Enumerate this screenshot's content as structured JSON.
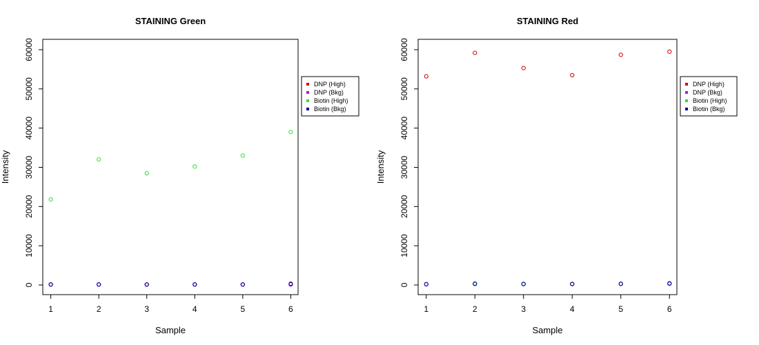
{
  "chart_data": [
    {
      "type": "scatter",
      "title": "STAINING Green",
      "xlabel": "Sample",
      "ylabel": "Intensity",
      "x": [
        1,
        2,
        3,
        4,
        5,
        6
      ],
      "xlim": [
        1,
        6
      ],
      "ylim": [
        0,
        60000
      ],
      "xticks": [
        "1",
        "2",
        "3",
        "4",
        "5",
        "6"
      ],
      "yticks": [
        "0",
        "10000",
        "20000",
        "30000",
        "40000",
        "50000",
        "60000"
      ],
      "grid": false,
      "legend_position": "right",
      "legend": [
        "DNP (High)",
        "DNP (Bkg)",
        "Biotin (High)",
        "Biotin (Bkg)"
      ],
      "series": [
        {
          "name": "DNP (High)",
          "color": "#cc0000",
          "values": [
            150,
            150,
            150,
            150,
            150,
            350
          ]
        },
        {
          "name": "DNP (Bkg)",
          "color": "#a020f0",
          "values": [
            120,
            130,
            120,
            130,
            120,
            250
          ]
        },
        {
          "name": "Biotin (High)",
          "color": "#33dd33",
          "values": [
            21800,
            32000,
            28500,
            30200,
            33000,
            39000
          ]
        },
        {
          "name": "Biotin (Bkg)",
          "color": "#000099",
          "values": [
            100,
            100,
            100,
            100,
            100,
            150
          ]
        }
      ]
    },
    {
      "type": "scatter",
      "title": "STAINING Red",
      "xlabel": "Sample",
      "ylabel": "Intensity",
      "x": [
        1,
        2,
        3,
        4,
        5,
        6
      ],
      "xlim": [
        1,
        6
      ],
      "ylim": [
        0,
        60000
      ],
      "xticks": [
        "1",
        "2",
        "3",
        "4",
        "5",
        "6"
      ],
      "yticks": [
        "0",
        "10000",
        "20000",
        "30000",
        "40000",
        "50000",
        "60000"
      ],
      "grid": false,
      "legend_position": "right",
      "legend": [
        "DNP (High)",
        "DNP (Bkg)",
        "Biotin (High)",
        "Biotin (Bkg)"
      ],
      "series": [
        {
          "name": "DNP (High)",
          "color": "#cc0000",
          "values": [
            53200,
            59200,
            55300,
            53500,
            58700,
            59500
          ]
        },
        {
          "name": "DNP (Bkg)",
          "color": "#a020f0",
          "values": [
            150,
            250,
            200,
            200,
            250,
            300
          ]
        },
        {
          "name": "Biotin (High)",
          "color": "#33dd33",
          "values": [
            250,
            400,
            300,
            300,
            350,
            450
          ]
        },
        {
          "name": "Biotin (Bkg)",
          "color": "#000099",
          "values": [
            200,
            300,
            250,
            250,
            300,
            400
          ]
        }
      ]
    }
  ]
}
